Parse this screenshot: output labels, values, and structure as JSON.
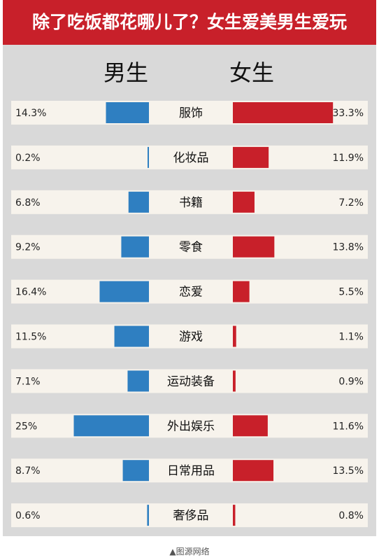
{
  "title": "除了吃饭都花哪儿了？女生爱美男生爱玩",
  "caption": "▲图源网络",
  "colors": {
    "male": "#2f7fc1",
    "female": "#c8202a",
    "row_bg": "#f7f3ec",
    "title_bg": "#c8202a",
    "frame_bg": "#d9d9d9"
  },
  "chart_data": {
    "type": "bar",
    "orientation": "horizontal-mirrored",
    "title": "除了吃饭都花哪儿了？女生爱美男生爱玩",
    "categories": [
      "服饰",
      "化妆品",
      "书籍",
      "零食",
      "恋爱",
      "游戏",
      "运动装备",
      "外出娱乐",
      "日常用品",
      "奢侈品"
    ],
    "series": [
      {
        "name": "男生",
        "color": "#2f7fc1",
        "values": [
          14.3,
          0.2,
          6.8,
          9.2,
          16.4,
          11.5,
          7.1,
          25,
          8.7,
          0.6
        ],
        "labels": [
          "14.3%",
          "0.2%",
          "6.8%",
          "9.2%",
          "16.4%",
          "11.5%",
          "7.1%",
          "25%",
          "8.7%",
          "0.6%"
        ]
      },
      {
        "name": "女生",
        "color": "#c8202a",
        "values": [
          33.3,
          11.9,
          7.2,
          13.8,
          5.5,
          1.1,
          0.9,
          11.6,
          13.5,
          0.8
        ],
        "labels": [
          "33.3%",
          "11.9%",
          "7.2%",
          "13.8%",
          "5.5%",
          "1.1%",
          "0.9%",
          "11.6%",
          "13.5%",
          "0.8%"
        ]
      }
    ],
    "legend": "top",
    "grid": false
  }
}
